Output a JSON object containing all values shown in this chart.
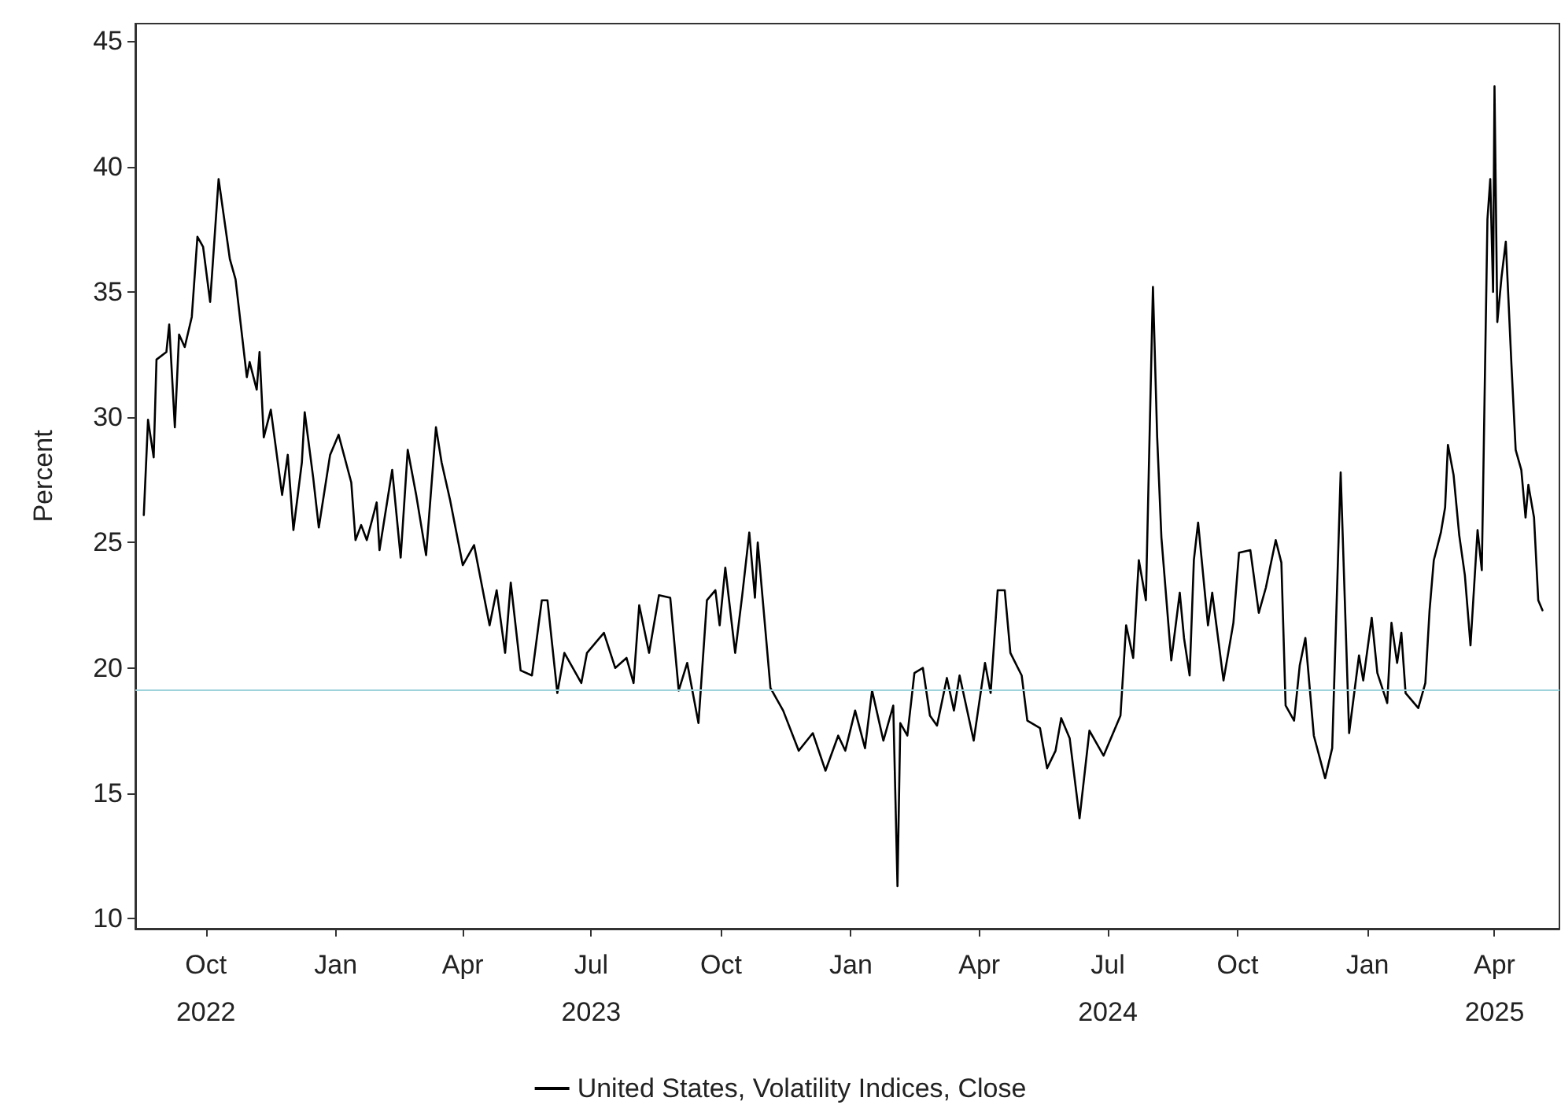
{
  "chart_data": {
    "type": "line",
    "ylabel": "Percent",
    "legend": "bottom",
    "grid": false,
    "marker": "none",
    "line_style": "solid",
    "xlim": [
      "2022-08-12",
      "2025-05-17"
    ],
    "ylim": [
      9.6,
      45.7
    ],
    "xticks": [
      {
        "value": "2022-10-01",
        "label": "Oct\n2022"
      },
      {
        "value": "2023-01-01",
        "label": "Jan"
      },
      {
        "value": "2023-04-01",
        "label": "Apr"
      },
      {
        "value": "2023-07-01",
        "label": "Jul\n2023"
      },
      {
        "value": "2023-10-01",
        "label": "Oct"
      },
      {
        "value": "2024-01-01",
        "label": "Jan"
      },
      {
        "value": "2024-04-01",
        "label": "Apr"
      },
      {
        "value": "2024-07-01",
        "label": "Jul\n2024"
      },
      {
        "value": "2024-10-01",
        "label": "Oct"
      },
      {
        "value": "2025-01-01",
        "label": "Jan"
      },
      {
        "value": "2025-04-01",
        "label": "Apr\n2025"
      }
    ],
    "yticks": [
      10,
      15,
      20,
      25,
      30,
      35,
      40,
      45
    ],
    "ref_lines": [
      {
        "axis": "y",
        "value": 19.1,
        "color": "#9fd3dc"
      }
    ],
    "series": [
      {
        "name": "United States, Volatility Indices, Close",
        "color": "#000000",
        "x": [
          "2022-08-18",
          "2022-08-21",
          "2022-08-25",
          "2022-08-27",
          "2022-09-03",
          "2022-09-05",
          "2022-09-09",
          "2022-09-12",
          "2022-09-16",
          "2022-09-21",
          "2022-09-25",
          "2022-09-29",
          "2022-10-04",
          "2022-10-10",
          "2022-10-18",
          "2022-10-22",
          "2022-10-30",
          "2022-11-01",
          "2022-11-06",
          "2022-11-08",
          "2022-11-11",
          "2022-11-16",
          "2022-11-24",
          "2022-11-28",
          "2022-12-02",
          "2022-12-08",
          "2022-12-10",
          "2022-12-16",
          "2022-12-20",
          "2022-12-28",
          "2023-01-03",
          "2023-01-12",
          "2023-01-15",
          "2023-01-19",
          "2023-01-23",
          "2023-01-30",
          "2023-02-01",
          "2023-02-10",
          "2023-02-16",
          "2023-02-21",
          "2023-02-27",
          "2023-03-06",
          "2023-03-13",
          "2023-03-17",
          "2023-03-23",
          "2023-04-01",
          "2023-04-09",
          "2023-04-20",
          "2023-04-25",
          "2023-05-01",
          "2023-05-05",
          "2023-05-12",
          "2023-05-20",
          "2023-05-27",
          "2023-05-31",
          "2023-06-07",
          "2023-06-12",
          "2023-06-24",
          "2023-06-28",
          "2023-07-10",
          "2023-07-18",
          "2023-07-26",
          "2023-07-31",
          "2023-08-04",
          "2023-08-11",
          "2023-08-18",
          "2023-08-26",
          "2023-09-01",
          "2023-09-07",
          "2023-09-15",
          "2023-09-21",
          "2023-09-27",
          "2023-09-30",
          "2023-10-04",
          "2023-10-11",
          "2023-10-16",
          "2023-10-21",
          "2023-10-25",
          "2023-10-27",
          "2023-11-05",
          "2023-11-14",
          "2023-11-25",
          "2023-12-05",
          "2023-12-14",
          "2023-12-23",
          "2023-12-28",
          "2024-01-04",
          "2024-01-11",
          "2024-01-16",
          "2024-01-24",
          "2024-01-31",
          "2024-02-03",
          "2024-02-05",
          "2024-02-10",
          "2024-02-15",
          "2024-02-21",
          "2024-02-26",
          "2024-03-02",
          "2024-03-09",
          "2024-03-14",
          "2024-03-18",
          "2024-03-28",
          "2024-04-05",
          "2024-04-09",
          "2024-04-14",
          "2024-04-19",
          "2024-04-23",
          "2024-05-01",
          "2024-05-05",
          "2024-05-14",
          "2024-05-19",
          "2024-05-25",
          "2024-05-29",
          "2024-06-04",
          "2024-06-11",
          "2024-06-18",
          "2024-06-28",
          "2024-07-10",
          "2024-07-14",
          "2024-07-19",
          "2024-07-23",
          "2024-07-28",
          "2024-08-02",
          "2024-08-05",
          "2024-08-08",
          "2024-08-15",
          "2024-08-21",
          "2024-08-24",
          "2024-08-28",
          "2024-08-31",
          "2024-09-03",
          "2024-09-10",
          "2024-09-13",
          "2024-09-21",
          "2024-09-28",
          "2024-10-02",
          "2024-10-10",
          "2024-10-16",
          "2024-10-21",
          "2024-10-28",
          "2024-11-01",
          "2024-11-04",
          "2024-11-10",
          "2024-11-14",
          "2024-11-18",
          "2024-11-24",
          "2024-12-02",
          "2024-12-07",
          "2024-12-13",
          "2024-12-19",
          "2024-12-26",
          "2024-12-29",
          "2025-01-04",
          "2025-01-08",
          "2025-01-15",
          "2025-01-18",
          "2025-01-22",
          "2025-01-25",
          "2025-01-28",
          "2025-02-06",
          "2025-02-11",
          "2025-02-14",
          "2025-02-17",
          "2025-02-22",
          "2025-02-25",
          "2025-02-27",
          "2025-03-03",
          "2025-03-07",
          "2025-03-11",
          "2025-03-15",
          "2025-03-20",
          "2025-03-23",
          "2025-03-27",
          "2025-03-29",
          "2025-03-31",
          "2025-04-01",
          "2025-04-03",
          "2025-04-06",
          "2025-04-09",
          "2025-04-13",
          "2025-04-16",
          "2025-04-20",
          "2025-04-23",
          "2025-04-25",
          "2025-04-29",
          "2025-05-02",
          "2025-05-05"
        ],
        "values": [
          26.1,
          29.9,
          28.4,
          32.3,
          32.6,
          33.7,
          29.6,
          33.3,
          32.8,
          34.0,
          37.2,
          36.8,
          34.6,
          39.5,
          36.3,
          35.5,
          31.6,
          32.2,
          31.1,
          32.6,
          29.2,
          30.3,
          26.9,
          28.5,
          25.5,
          28.2,
          30.2,
          27.6,
          25.6,
          28.5,
          29.3,
          27.4,
          25.1,
          25.7,
          25.1,
          26.6,
          24.7,
          27.9,
          24.4,
          28.7,
          26.9,
          24.5,
          29.6,
          28.2,
          26.7,
          24.1,
          24.9,
          21.7,
          23.1,
          20.6,
          23.4,
          19.9,
          19.7,
          22.7,
          22.7,
          19.0,
          20.6,
          19.4,
          20.6,
          21.4,
          20.0,
          20.4,
          19.4,
          22.5,
          20.6,
          22.9,
          22.8,
          19.1,
          20.2,
          17.8,
          22.7,
          23.1,
          21.7,
          24.0,
          20.6,
          22.9,
          25.4,
          22.8,
          25.0,
          19.2,
          18.3,
          16.7,
          17.4,
          15.9,
          17.3,
          16.7,
          18.3,
          16.8,
          19.1,
          17.1,
          18.5,
          11.3,
          17.8,
          17.3,
          19.8,
          20.0,
          18.1,
          17.7,
          19.6,
          18.3,
          19.7,
          17.1,
          20.2,
          19.0,
          23.1,
          23.1,
          20.6,
          19.7,
          17.9,
          17.6,
          16.0,
          16.7,
          18.0,
          17.2,
          14.0,
          17.5,
          16.5,
          18.1,
          21.7,
          20.4,
          24.3,
          22.7,
          35.2,
          29.2,
          25.2,
          20.3,
          23.0,
          21.2,
          19.7,
          24.3,
          25.8,
          21.7,
          23.0,
          19.5,
          21.8,
          24.6,
          24.7,
          22.2,
          23.2,
          25.1,
          24.2,
          18.5,
          17.9,
          20.1,
          21.2,
          17.3,
          15.6,
          16.8,
          27.8,
          17.4,
          20.5,
          19.5,
          22.0,
          19.8,
          18.6,
          21.8,
          20.2,
          21.4,
          19.0,
          18.4,
          19.4,
          22.3,
          24.3,
          25.4,
          26.4,
          28.9,
          27.7,
          25.3,
          23.7,
          20.9,
          25.5,
          23.9,
          37.9,
          39.5,
          35.0,
          43.2,
          33.8,
          35.6,
          37.0,
          32.1,
          28.7,
          27.9,
          26.0,
          27.3,
          26.0,
          22.7,
          22.3
        ]
      }
    ]
  }
}
